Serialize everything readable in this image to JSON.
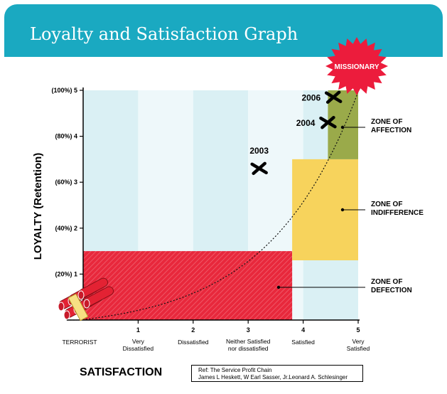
{
  "header": {
    "title": "Loyalty and Satisfaction Graph"
  },
  "colors": {
    "banner": "#1aa9c1",
    "band_light": "#daf0f4",
    "band_lighter": "#eef8fa",
    "defection": "#e8283c",
    "indifference": "#f7d35c",
    "affection": "#9aaa4a",
    "missionary": "#ec1c3c"
  },
  "chart_data": {
    "type": "scatter",
    "title": "",
    "xlabel": "SATISFACTION",
    "ylabel": "LOYALTY (Retention)",
    "xlim": [
      0,
      5
    ],
    "ylim": [
      0,
      5
    ],
    "x_ticks": [
      {
        "value": 0,
        "label": "TERRORIST"
      },
      {
        "value": 1,
        "label": "Very Dissatisfied",
        "num": "1"
      },
      {
        "value": 2,
        "label": "Dissatisfied",
        "num": "2"
      },
      {
        "value": 3,
        "label": "Neither Satisfied nor dissatisfied",
        "num": "3"
      },
      {
        "value": 4,
        "label": "Satisfied",
        "num": "4"
      },
      {
        "value": 5,
        "label": "Very Satisfied",
        "num": "5"
      }
    ],
    "y_ticks": [
      {
        "value": 1,
        "label": "(20%) 1"
      },
      {
        "value": 2,
        "label": "(40%) 2"
      },
      {
        "value": 3,
        "label": "(60%) 3"
      },
      {
        "value": 4,
        "label": "(80%) 4"
      },
      {
        "value": 5,
        "label": "(100%) 5"
      }
    ],
    "points": [
      {
        "label": "2003",
        "x": 3.2,
        "y": 3.3
      },
      {
        "label": "2004",
        "x": 4.45,
        "y": 4.3
      },
      {
        "label": "2006",
        "x": 4.55,
        "y": 4.85
      }
    ],
    "zones": [
      {
        "name": "ZONE OF DEFECTION",
        "x": [
          -1,
          3.8
        ],
        "y": [
          0,
          1.5
        ]
      },
      {
        "name": "ZONE OF INDIFFERENCE",
        "x": [
          3.8,
          5
        ],
        "y": [
          1.3,
          3.5
        ]
      },
      {
        "name": "ZONE OF AFFECTION",
        "x": [
          4.45,
          5
        ],
        "y": [
          3.5,
          5
        ]
      }
    ],
    "missionary_label": "MISSIONARY",
    "curve": "exponential",
    "grid": false
  },
  "reference": {
    "line1": "Ref: The Service Profit Chain",
    "line2": "James L Heskett,  W Earl Sasser, Jr.Leonard A. Schlesinger"
  }
}
